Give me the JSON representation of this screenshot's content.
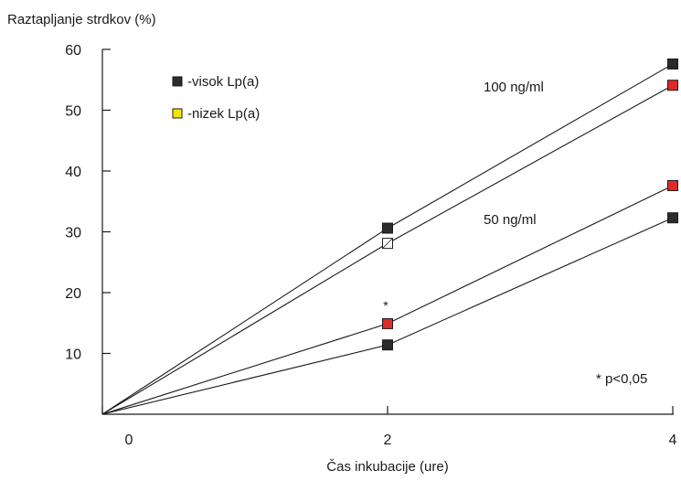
{
  "chart_data": {
    "type": "line",
    "ylabel": "Raztapljanje strdkov (%)",
    "xlabel": "Čas inkubacije (ure)",
    "x_ticks": [
      0,
      2,
      4
    ],
    "y_ticks": [
      10,
      20,
      30,
      40,
      50,
      60
    ],
    "x_origin_label": "0",
    "xlim": [
      0,
      4
    ],
    "ylim": [
      0,
      60
    ],
    "grid": false,
    "legend": {
      "placement": "top-left",
      "items": [
        {
          "label": "-visok Lp(a)",
          "color": "#2b2b2b"
        },
        {
          "label": "-nizek Lp(a)",
          "color": "#f5e600"
        }
      ]
    },
    "group_labels": [
      {
        "text": "100 ng/ml",
        "x": 2.85,
        "y": 55
      },
      {
        "text": "50 ng/ml",
        "x": 2.85,
        "y": 32
      }
    ],
    "annotations": [
      {
        "text": "*",
        "x": 2,
        "y": 18
      },
      {
        "text": "* p<0,05",
        "x": 3.55,
        "y": 5
      }
    ],
    "series": [
      {
        "x": [
          0,
          2,
          4
        ],
        "values": [
          0,
          30.6,
          57.6
        ],
        "colors": [
          "#2b2b2b",
          "#2b2b2b",
          "#2b2b2b"
        ],
        "hollow": [
          false,
          false,
          false
        ]
      },
      {
        "x": [
          0,
          2,
          4
        ],
        "values": [
          0,
          28.1,
          54.1
        ],
        "colors": [
          "#ffffff",
          "#ffffff",
          "#e02a2a"
        ],
        "hollow": [
          false,
          true,
          false
        ]
      },
      {
        "x": [
          0,
          2,
          4
        ],
        "values": [
          0,
          14.9,
          37.6
        ],
        "colors": [
          "#e02a2a",
          "#e02a2a",
          "#e02a2a"
        ],
        "hollow": [
          false,
          false,
          false
        ]
      },
      {
        "x": [
          0,
          2,
          4
        ],
        "values": [
          0,
          11.4,
          32.3
        ],
        "colors": [
          "#2b2b2b",
          "#2b2b2b",
          "#2b2b2b"
        ],
        "hollow": [
          false,
          false,
          false
        ]
      }
    ]
  }
}
